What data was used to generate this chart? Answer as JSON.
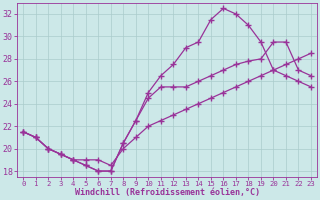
{
  "xlabel": "Windchill (Refroidissement éolien,°C)",
  "background_color": "#cce8e8",
  "grid_color": "#aacccc",
  "line_color": "#993399",
  "xlim": [
    -0.5,
    23.5
  ],
  "ylim": [
    17.5,
    33.0
  ],
  "yticks": [
    18,
    20,
    22,
    24,
    26,
    28,
    30,
    32
  ],
  "xticks": [
    0,
    1,
    2,
    3,
    4,
    5,
    6,
    7,
    8,
    9,
    10,
    11,
    12,
    13,
    14,
    15,
    16,
    17,
    18,
    19,
    20,
    21,
    22,
    23
  ],
  "line1_x": [
    0,
    1,
    2,
    3,
    4,
    5,
    6,
    7,
    8,
    9,
    10,
    11,
    12,
    13,
    14,
    15,
    16,
    17,
    18,
    19,
    20,
    21,
    22,
    23
  ],
  "line1_y": [
    21.5,
    21.0,
    20.0,
    19.5,
    19.0,
    18.5,
    18.0,
    18.0,
    20.5,
    22.5,
    25.0,
    26.5,
    27.5,
    29.0,
    29.5,
    31.5,
    32.5,
    32.0,
    31.0,
    29.5,
    27.0,
    26.5,
    26.0,
    25.5
  ],
  "line2_x": [
    0,
    1,
    2,
    3,
    4,
    5,
    6,
    7,
    8,
    9,
    10,
    11,
    12,
    13,
    14,
    15,
    16,
    17,
    18,
    19,
    20,
    21,
    22,
    23
  ],
  "line2_y": [
    21.5,
    21.0,
    20.0,
    19.5,
    19.0,
    18.5,
    18.0,
    18.0,
    20.5,
    22.5,
    24.5,
    25.5,
    25.5,
    25.5,
    26.0,
    26.5,
    27.0,
    27.5,
    27.8,
    28.0,
    29.5,
    29.5,
    27.0,
    26.5
  ],
  "line3_x": [
    0,
    1,
    2,
    3,
    4,
    5,
    6,
    7,
    8,
    9,
    10,
    11,
    12,
    13,
    14,
    15,
    16,
    17,
    18,
    19,
    20,
    21,
    22,
    23
  ],
  "line3_y": [
    21.5,
    21.0,
    20.0,
    19.5,
    19.0,
    19.0,
    19.0,
    18.5,
    20.0,
    21.0,
    22.0,
    22.5,
    23.0,
    23.5,
    24.0,
    24.5,
    25.0,
    25.5,
    26.0,
    26.5,
    27.0,
    27.5,
    28.0,
    28.5
  ]
}
